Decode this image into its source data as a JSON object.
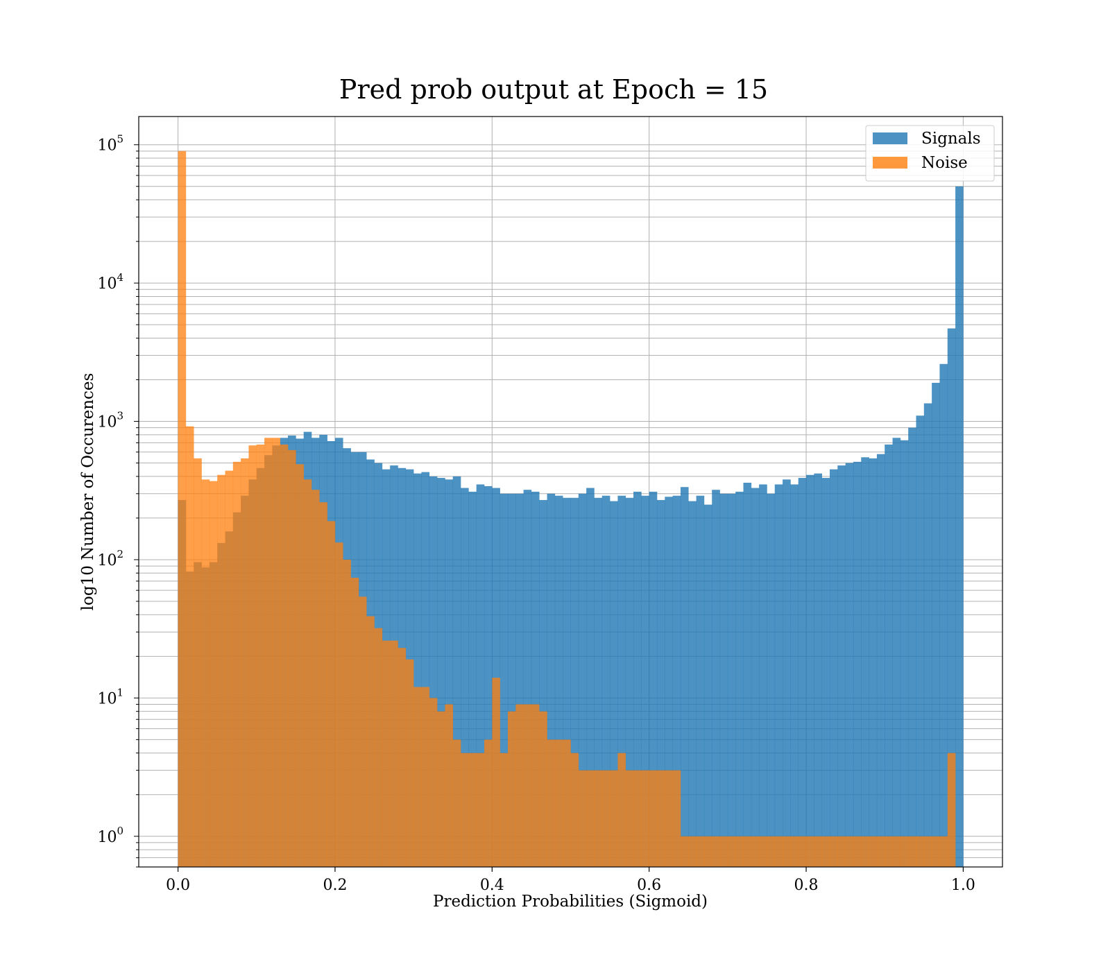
{
  "chart_data": {
    "type": "bar",
    "title": "Pred prob output at Epoch = 15",
    "xlabel": "Prediction Probabilities (Sigmoid)",
    "ylabel": "log10 Number of Occurences",
    "y_scale": "log",
    "xlim": [
      -0.05,
      1.05
    ],
    "ylim": [
      0.6,
      160000
    ],
    "x_ticks": [
      0.0,
      0.2,
      0.4,
      0.6,
      0.8,
      1.0
    ],
    "x_tick_labels": [
      "0.0",
      "0.2",
      "0.4",
      "0.6",
      "0.8",
      "1.0"
    ],
    "y_ticks": [
      {
        "value": 1,
        "base": "10",
        "exp": "0"
      },
      {
        "value": 10,
        "base": "10",
        "exp": "1"
      },
      {
        "value": 100,
        "base": "10",
        "exp": "2"
      },
      {
        "value": 1000,
        "base": "10",
        "exp": "3"
      },
      {
        "value": 10000,
        "base": "10",
        "exp": "4"
      },
      {
        "value": 100000,
        "base": "10",
        "exp": "5"
      }
    ],
    "grid": true,
    "minor_grid_y": true,
    "legend_position": "top-right",
    "bin_width": 0.01,
    "bin_start": 0.0,
    "series": [
      {
        "name": "Signals",
        "color": "#1f77b4",
        "opacity": 0.8,
        "values": [
          270,
          82,
          96,
          88,
          96,
          132,
          160,
          220,
          290,
          380,
          460,
          570,
          670,
          760,
          790,
          750,
          840,
          760,
          800,
          720,
          760,
          640,
          600,
          600,
          530,
          500,
          450,
          480,
          460,
          450,
          420,
          430,
          400,
          390,
          380,
          400,
          330,
          310,
          350,
          340,
          330,
          300,
          300,
          300,
          320,
          310,
          270,
          300,
          290,
          280,
          280,
          300,
          330,
          280,
          290,
          265,
          290,
          280,
          310,
          290,
          310,
          270,
          285,
          290,
          335,
          265,
          290,
          250,
          320,
          300,
          300,
          310,
          360,
          330,
          350,
          300,
          350,
          380,
          350,
          390,
          410,
          420,
          390,
          450,
          480,
          500,
          510,
          550,
          540,
          580,
          680,
          760,
          730,
          900,
          1100,
          1350,
          1900,
          2600,
          4700,
          50000
        ]
      },
      {
        "name": "Noise",
        "color": "#ff7f0e",
        "opacity": 0.75,
        "values": [
          90000,
          920,
          540,
          380,
          370,
          410,
          440,
          510,
          540,
          670,
          680,
          760,
          760,
          680,
          620,
          490,
          380,
          320,
          260,
          190,
          133,
          100,
          74,
          54,
          39,
          32,
          26,
          26,
          23,
          19,
          12,
          12,
          10,
          8,
          9,
          5,
          4,
          4,
          4,
          5,
          14,
          4,
          8,
          9,
          9,
          9,
          8,
          5,
          5,
          5,
          4,
          3,
          3,
          3,
          3,
          3,
          4,
          3,
          3,
          3,
          3,
          3,
          3,
          3,
          1,
          1,
          1,
          1,
          1,
          1,
          1,
          1,
          1,
          1,
          1,
          1,
          1,
          1,
          1,
          1,
          1,
          1,
          1,
          1,
          1,
          1,
          1,
          1,
          1,
          1,
          1,
          1,
          1,
          1,
          1,
          1,
          1,
          1,
          4,
          0
        ]
      }
    ],
    "legend": [
      {
        "label": "Signals",
        "color": "#1f77b4"
      },
      {
        "label": "Noise",
        "color": "#ff7f0e"
      }
    ]
  }
}
